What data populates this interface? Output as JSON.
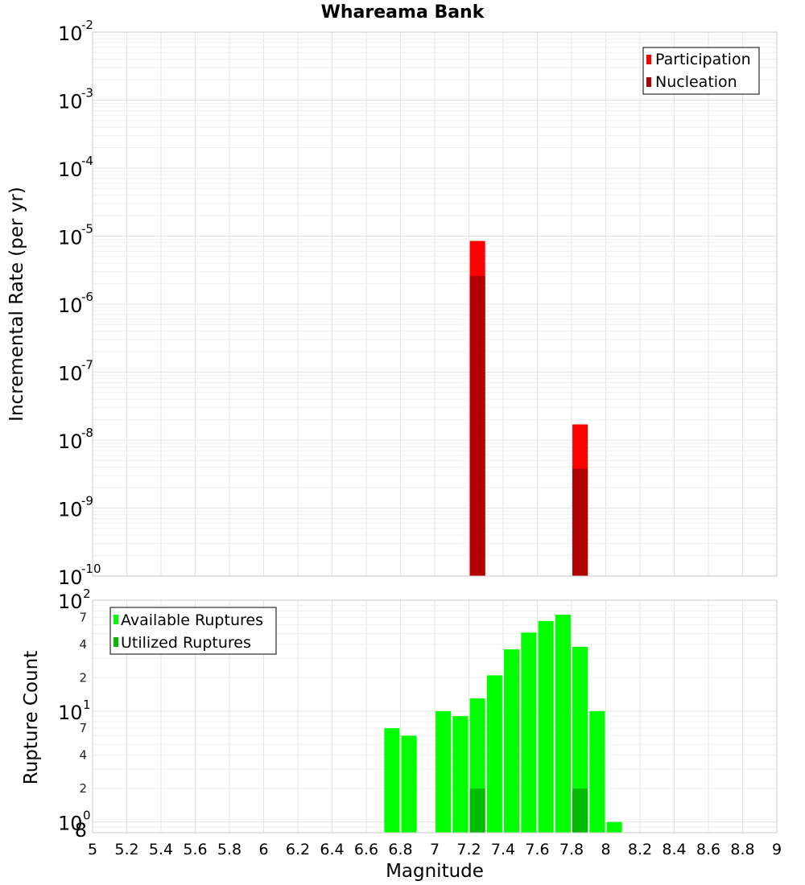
{
  "chart_data": [
    {
      "type": "bar",
      "title": "Whareama Bank",
      "xlabel": "",
      "ylabel": "Incremental Rate (per yr)",
      "xlim": [
        5,
        9
      ],
      "ylim": [
        1e-10,
        0.01
      ],
      "yscale": "log",
      "grid": true,
      "legend_position": "top-right",
      "bar_width": 0.09,
      "series": [
        {
          "name": "Participation",
          "color": "#ff0000",
          "x": [
            7.25,
            7.85
          ],
          "values": [
            8.5e-06,
            1.7e-08
          ]
        },
        {
          "name": "Nucleation",
          "color": "#b00000",
          "x": [
            7.25,
            7.85
          ],
          "values": [
            2.6e-06,
            3.8e-09
          ]
        }
      ]
    },
    {
      "type": "bar",
      "title": "",
      "xlabel": "Magnitude",
      "ylabel": "Rupture Count",
      "xlim": [
        5,
        9
      ],
      "ylim": [
        0.8,
        100
      ],
      "yscale": "log",
      "grid": true,
      "legend_position": "top-left",
      "bar_width": 0.09,
      "x_ticks": [
        "5",
        "5.2",
        "5.4",
        "5.6",
        "5.8",
        "6",
        "6.2",
        "6.4",
        "6.6",
        "6.8",
        "7",
        "7.2",
        "7.4",
        "7.6",
        "7.8",
        "8",
        "8.2",
        "8.4",
        "8.6",
        "8.8",
        "9"
      ],
      "series": [
        {
          "name": "Available Ruptures",
          "color": "#00ff00",
          "x": [
            6.75,
            6.85,
            7.05,
            7.15,
            7.25,
            7.35,
            7.45,
            7.55,
            7.65,
            7.75,
            7.85,
            7.95,
            8.05
          ],
          "values": [
            7,
            6,
            10,
            9,
            13,
            21,
            36,
            51,
            65,
            74,
            38,
            10,
            1
          ]
        },
        {
          "name": "Utilized Ruptures",
          "color": "#00bb00",
          "x": [
            7.25,
            7.85
          ],
          "values": [
            2,
            2
          ]
        }
      ]
    }
  ],
  "top_axis": {
    "major_ticks": [
      {
        "base": "10",
        "exp": "-10",
        "value": 1e-10
      },
      {
        "base": "10",
        "exp": "-9",
        "value": 1e-09
      },
      {
        "base": "10",
        "exp": "-8",
        "value": 1e-08
      },
      {
        "base": "10",
        "exp": "-7",
        "value": 1e-07
      },
      {
        "base": "10",
        "exp": "-6",
        "value": 1e-06
      },
      {
        "base": "10",
        "exp": "-5",
        "value": 1e-05
      },
      {
        "base": "10",
        "exp": "-4",
        "value": 0.0001
      },
      {
        "base": "10",
        "exp": "-3",
        "value": 0.001
      },
      {
        "base": "10",
        "exp": "-2",
        "value": 0.01
      }
    ]
  },
  "bottom_axis": {
    "major_ticks": [
      {
        "base": "10",
        "exp": "0",
        "value": 1
      },
      {
        "base": "10",
        "exp": "1",
        "value": 10
      },
      {
        "base": "10",
        "exp": "2",
        "value": 100
      }
    ],
    "minor_ticks": [
      {
        "label": "8",
        "value": 0.8
      },
      {
        "label": "2",
        "value": 2
      },
      {
        "label": "4",
        "value": 4
      },
      {
        "label": "7",
        "value": 7
      },
      {
        "label": "2",
        "value": 20
      },
      {
        "label": "4",
        "value": 40
      },
      {
        "label": "7",
        "value": 70
      }
    ]
  }
}
